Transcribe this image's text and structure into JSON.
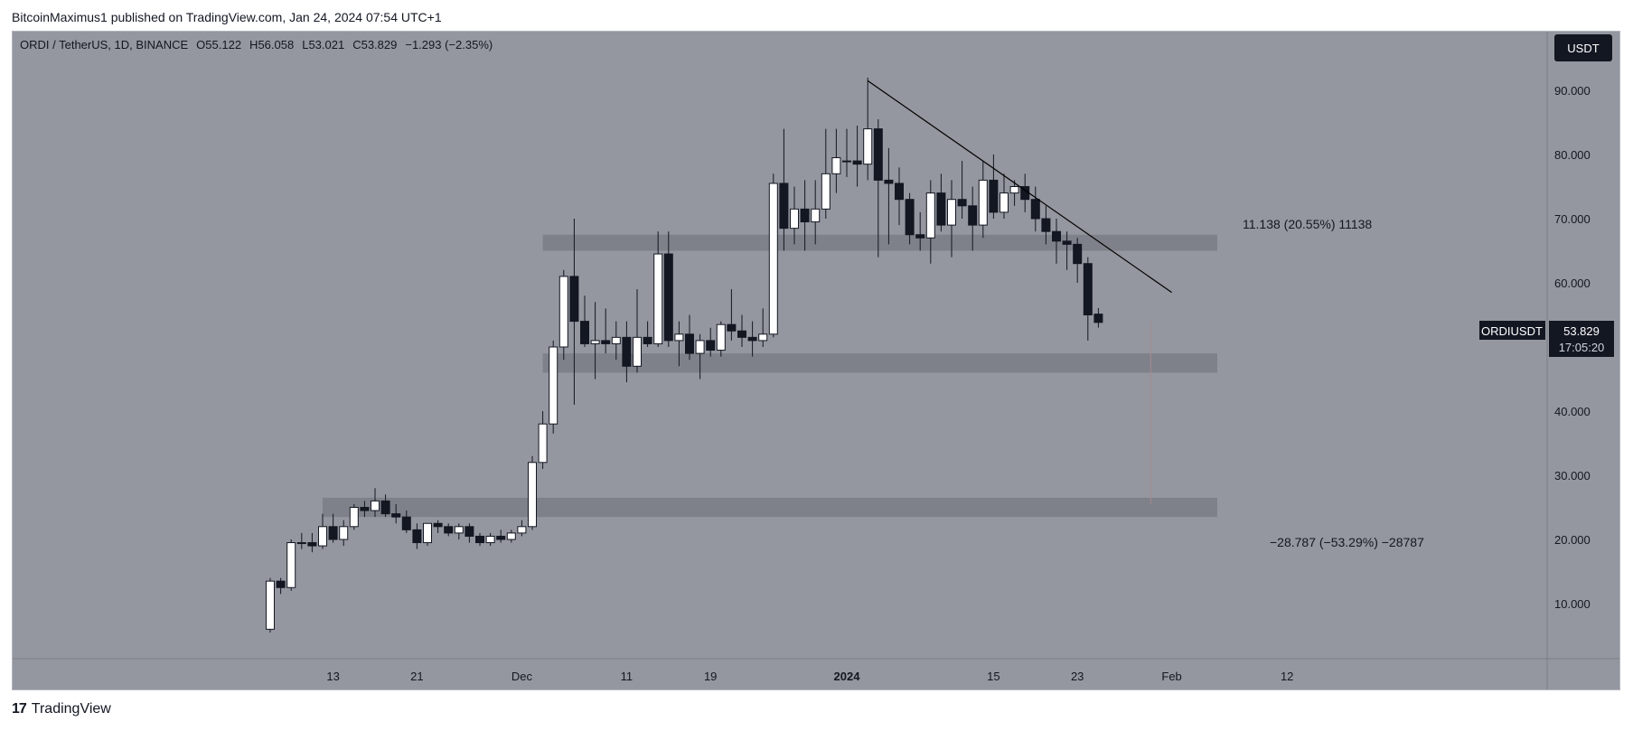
{
  "header": {
    "published": "BitcoinMaximus1 published on TradingView.com, Jan 24, 2024 07:54 UTC+1"
  },
  "legend": {
    "symbol": "ORDI / TetherUS, 1D, BINANCE",
    "open_label": "O",
    "open": "55.122",
    "high_label": "H",
    "high": "56.058",
    "low_label": "L",
    "low": "53.021",
    "close_label": "C",
    "close": "53.829",
    "change": "−1.293 (−2.35%)"
  },
  "currency_button": "USDT",
  "price_tag": {
    "symbol": "ORDIUSDT",
    "price": "53.829",
    "countdown": "17:05:20"
  },
  "annotations": {
    "upper_measure": "11.138 (20.55%) 11138",
    "lower_measure": "−28.787 (−53.29%) −28787"
  },
  "footer": {
    "brand": "TradingView",
    "logo_glyph": "17"
  },
  "colors": {
    "background": "#94979f",
    "up_candle": "#ffffff",
    "down_candle": "#131722",
    "zone": "#7e8189",
    "trendline": "#000000"
  },
  "chart_data": {
    "type": "candlestick",
    "ylim": [
      0,
      98
    ],
    "y_ticks": [
      "10.000",
      "20.000",
      "30.000",
      "40.000",
      "50.000",
      "60.000",
      "70.000",
      "80.000",
      "90.000"
    ],
    "y_tick_values": [
      10,
      20,
      30,
      40,
      50,
      60,
      70,
      80,
      90
    ],
    "x_ticks": [
      {
        "label": "13",
        "date": "2023-11-13"
      },
      {
        "label": "21",
        "date": "2023-11-21"
      },
      {
        "label": "Dec",
        "date": "2023-12-01"
      },
      {
        "label": "11",
        "date": "2023-12-11"
      },
      {
        "label": "19",
        "date": "2023-12-19"
      },
      {
        "label": "2024",
        "date": "2024-01-01",
        "bold": true
      },
      {
        "label": "15",
        "date": "2024-01-15"
      },
      {
        "label": "23",
        "date": "2024-01-23"
      },
      {
        "label": "Feb",
        "date": "2024-02-01"
      },
      {
        "label": "12",
        "date": "2024-02-12"
      }
    ],
    "candles": [
      {
        "date": "2023-11-07",
        "o": 6,
        "h": 14,
        "l": 5.5,
        "c": 13.5
      },
      {
        "date": "2023-11-08",
        "o": 13.5,
        "h": 14,
        "l": 11.5,
        "c": 12.5
      },
      {
        "date": "2023-11-09",
        "o": 12.5,
        "h": 20,
        "l": 12,
        "c": 19.5
      },
      {
        "date": "2023-11-10",
        "o": 19.5,
        "h": 21,
        "l": 18.5,
        "c": 19.5
      },
      {
        "date": "2023-11-11",
        "o": 19.5,
        "h": 21,
        "l": 18,
        "c": 19
      },
      {
        "date": "2023-11-12",
        "o": 19,
        "h": 24,
        "l": 18.5,
        "c": 22
      },
      {
        "date": "2023-11-13",
        "o": 22,
        "h": 24,
        "l": 19.5,
        "c": 20
      },
      {
        "date": "2023-11-14",
        "o": 20,
        "h": 23,
        "l": 19,
        "c": 22
      },
      {
        "date": "2023-11-15",
        "o": 22,
        "h": 25.5,
        "l": 21.5,
        "c": 25
      },
      {
        "date": "2023-11-16",
        "o": 25,
        "h": 26,
        "l": 23.5,
        "c": 24.5
      },
      {
        "date": "2023-11-17",
        "o": 24.5,
        "h": 28,
        "l": 23.5,
        "c": 26
      },
      {
        "date": "2023-11-18",
        "o": 26,
        "h": 27,
        "l": 23.5,
        "c": 24
      },
      {
        "date": "2023-11-19",
        "o": 24,
        "h": 25.5,
        "l": 22.5,
        "c": 23.5
      },
      {
        "date": "2023-11-20",
        "o": 23.5,
        "h": 24.5,
        "l": 21,
        "c": 21.5
      },
      {
        "date": "2023-11-21",
        "o": 21.5,
        "h": 22.5,
        "l": 18.5,
        "c": 19.5
      },
      {
        "date": "2023-11-22",
        "o": 19.5,
        "h": 22.5,
        "l": 19,
        "c": 22.5
      },
      {
        "date": "2023-11-23",
        "o": 22.5,
        "h": 23,
        "l": 21,
        "c": 22
      },
      {
        "date": "2023-11-24",
        "o": 22,
        "h": 22.5,
        "l": 20.5,
        "c": 21
      },
      {
        "date": "2023-11-25",
        "o": 21,
        "h": 22.5,
        "l": 20,
        "c": 22
      },
      {
        "date": "2023-11-26",
        "o": 22,
        "h": 22.5,
        "l": 19.5,
        "c": 20.5
      },
      {
        "date": "2023-11-27",
        "o": 20.5,
        "h": 21,
        "l": 19,
        "c": 19.5
      },
      {
        "date": "2023-11-28",
        "o": 19.5,
        "h": 21,
        "l": 19,
        "c": 20.5
      },
      {
        "date": "2023-11-29",
        "o": 20.5,
        "h": 21.5,
        "l": 19.5,
        "c": 20
      },
      {
        "date": "2023-11-30",
        "o": 20,
        "h": 21.5,
        "l": 19.5,
        "c": 21
      },
      {
        "date": "2023-12-01",
        "o": 21,
        "h": 23,
        "l": 20.5,
        "c": 22
      },
      {
        "date": "2023-12-02",
        "o": 22,
        "h": 33,
        "l": 21.5,
        "c": 32
      },
      {
        "date": "2023-12-03",
        "o": 32,
        "h": 40,
        "l": 31,
        "c": 38
      },
      {
        "date": "2023-12-04",
        "o": 38,
        "h": 51,
        "l": 36.5,
        "c": 50
      },
      {
        "date": "2023-12-05",
        "o": 50,
        "h": 62,
        "l": 48,
        "c": 61
      },
      {
        "date": "2023-12-06",
        "o": 61,
        "h": 70,
        "l": 41,
        "c": 54
      },
      {
        "date": "2023-12-07",
        "o": 54,
        "h": 58,
        "l": 50,
        "c": 50.5
      },
      {
        "date": "2023-12-08",
        "o": 50.5,
        "h": 57,
        "l": 45,
        "c": 51
      },
      {
        "date": "2023-12-09",
        "o": 51,
        "h": 56,
        "l": 49,
        "c": 50.5
      },
      {
        "date": "2023-12-10",
        "o": 50.5,
        "h": 54,
        "l": 48,
        "c": 51.5
      },
      {
        "date": "2023-12-11",
        "o": 51.5,
        "h": 54,
        "l": 44.5,
        "c": 47
      },
      {
        "date": "2023-12-12",
        "o": 47,
        "h": 59,
        "l": 46,
        "c": 51.5
      },
      {
        "date": "2023-12-13",
        "o": 51.5,
        "h": 54,
        "l": 50,
        "c": 50.5
      },
      {
        "date": "2023-12-14",
        "o": 50.5,
        "h": 68,
        "l": 50,
        "c": 64.5
      },
      {
        "date": "2023-12-15",
        "o": 64.5,
        "h": 68,
        "l": 50,
        "c": 51
      },
      {
        "date": "2023-12-16",
        "o": 51,
        "h": 54,
        "l": 47,
        "c": 52
      },
      {
        "date": "2023-12-17",
        "o": 52,
        "h": 55,
        "l": 48,
        "c": 49
      },
      {
        "date": "2023-12-18",
        "o": 49,
        "h": 52,
        "l": 45,
        "c": 51
      },
      {
        "date": "2023-12-19",
        "o": 51,
        "h": 53,
        "l": 48.5,
        "c": 49.5
      },
      {
        "date": "2023-12-20",
        "o": 49.5,
        "h": 54,
        "l": 48.5,
        "c": 53.5
      },
      {
        "date": "2023-12-21",
        "o": 53.5,
        "h": 59,
        "l": 51,
        "c": 52.5
      },
      {
        "date": "2023-12-22",
        "o": 52.5,
        "h": 55,
        "l": 50,
        "c": 51.5
      },
      {
        "date": "2023-12-23",
        "o": 51.5,
        "h": 54,
        "l": 48.5,
        "c": 51
      },
      {
        "date": "2023-12-24",
        "o": 51,
        "h": 56,
        "l": 50,
        "c": 52
      },
      {
        "date": "2023-12-25",
        "o": 52,
        "h": 77,
        "l": 51.5,
        "c": 75.5
      },
      {
        "date": "2023-12-26",
        "o": 75.5,
        "h": 84,
        "l": 65,
        "c": 68.5
      },
      {
        "date": "2023-12-27",
        "o": 68.5,
        "h": 75,
        "l": 66,
        "c": 71.5
      },
      {
        "date": "2023-12-28",
        "o": 71.5,
        "h": 76,
        "l": 65,
        "c": 69.5
      },
      {
        "date": "2023-12-29",
        "o": 69.5,
        "h": 76,
        "l": 66,
        "c": 71.5
      },
      {
        "date": "2023-12-30",
        "o": 71.5,
        "h": 84,
        "l": 70,
        "c": 77
      },
      {
        "date": "2023-12-31",
        "o": 77,
        "h": 84,
        "l": 74,
        "c": 79.5
      },
      {
        "date": "2024-01-01",
        "o": 79,
        "h": 84,
        "l": 76.5,
        "c": 79
      },
      {
        "date": "2024-01-02",
        "o": 79,
        "h": 84.5,
        "l": 75,
        "c": 78.5
      },
      {
        "date": "2024-01-03",
        "o": 78.5,
        "h": 92,
        "l": 76,
        "c": 84
      },
      {
        "date": "2024-01-04",
        "o": 84,
        "h": 85.5,
        "l": 64,
        "c": 76
      },
      {
        "date": "2024-01-05",
        "o": 76,
        "h": 81,
        "l": 66,
        "c": 75.5
      },
      {
        "date": "2024-01-06",
        "o": 75.5,
        "h": 78,
        "l": 69,
        "c": 73
      },
      {
        "date": "2024-01-07",
        "o": 73,
        "h": 74,
        "l": 66,
        "c": 67.5
      },
      {
        "date": "2024-01-08",
        "o": 67.5,
        "h": 71,
        "l": 65,
        "c": 67
      },
      {
        "date": "2024-01-09",
        "o": 67,
        "h": 76,
        "l": 63,
        "c": 74
      },
      {
        "date": "2024-01-10",
        "o": 74,
        "h": 77,
        "l": 68,
        "c": 69
      },
      {
        "date": "2024-01-11",
        "o": 69,
        "h": 76,
        "l": 64,
        "c": 73
      },
      {
        "date": "2024-01-12",
        "o": 73,
        "h": 79,
        "l": 70,
        "c": 72
      },
      {
        "date": "2024-01-13",
        "o": 72,
        "h": 75,
        "l": 65,
        "c": 69
      },
      {
        "date": "2024-01-14",
        "o": 69,
        "h": 79,
        "l": 67,
        "c": 76
      },
      {
        "date": "2024-01-15",
        "o": 76,
        "h": 80,
        "l": 70,
        "c": 71
      },
      {
        "date": "2024-01-16",
        "o": 71,
        "h": 77,
        "l": 70,
        "c": 74
      },
      {
        "date": "2024-01-17",
        "o": 74,
        "h": 76,
        "l": 72,
        "c": 75
      },
      {
        "date": "2024-01-18",
        "o": 75,
        "h": 77,
        "l": 71,
        "c": 73
      },
      {
        "date": "2024-01-19",
        "o": 73,
        "h": 75,
        "l": 68,
        "c": 70
      },
      {
        "date": "2024-01-20",
        "o": 70,
        "h": 72,
        "l": 66,
        "c": 68
      },
      {
        "date": "2024-01-21",
        "o": 68,
        "h": 70,
        "l": 63,
        "c": 66.5
      },
      {
        "date": "2024-01-22",
        "o": 66.5,
        "h": 68,
        "l": 62,
        "c": 66
      },
      {
        "date": "2024-01-23",
        "o": 66,
        "h": 67,
        "l": 60,
        "c": 63
      },
      {
        "date": "2024-01-24",
        "o": 63,
        "h": 64,
        "l": 51,
        "c": 55
      },
      {
        "date": "2024-01-25",
        "o": 55.122,
        "h": 56.058,
        "l": 53.021,
        "c": 53.829
      }
    ],
    "zones": [
      {
        "name": "resistance-zone",
        "from_date": "2023-12-03",
        "to_date": "2024-02-05",
        "low": 65,
        "high": 67.5
      },
      {
        "name": "support-zone-middle",
        "from_date": "2023-12-03",
        "to_date": "2024-02-05",
        "low": 46,
        "high": 49
      },
      {
        "name": "support-zone-lower",
        "from_date": "2023-11-12",
        "to_date": "2024-02-05",
        "low": 23.5,
        "high": 26.5
      }
    ],
    "trendline": {
      "from": {
        "date": "2024-01-03",
        "price": 91.5
      },
      "to": {
        "date": "2024-02-01",
        "price": 58.5
      }
    },
    "measure_line": {
      "date": "2024-01-30",
      "from_price": 54,
      "to_price": 25.5
    }
  }
}
